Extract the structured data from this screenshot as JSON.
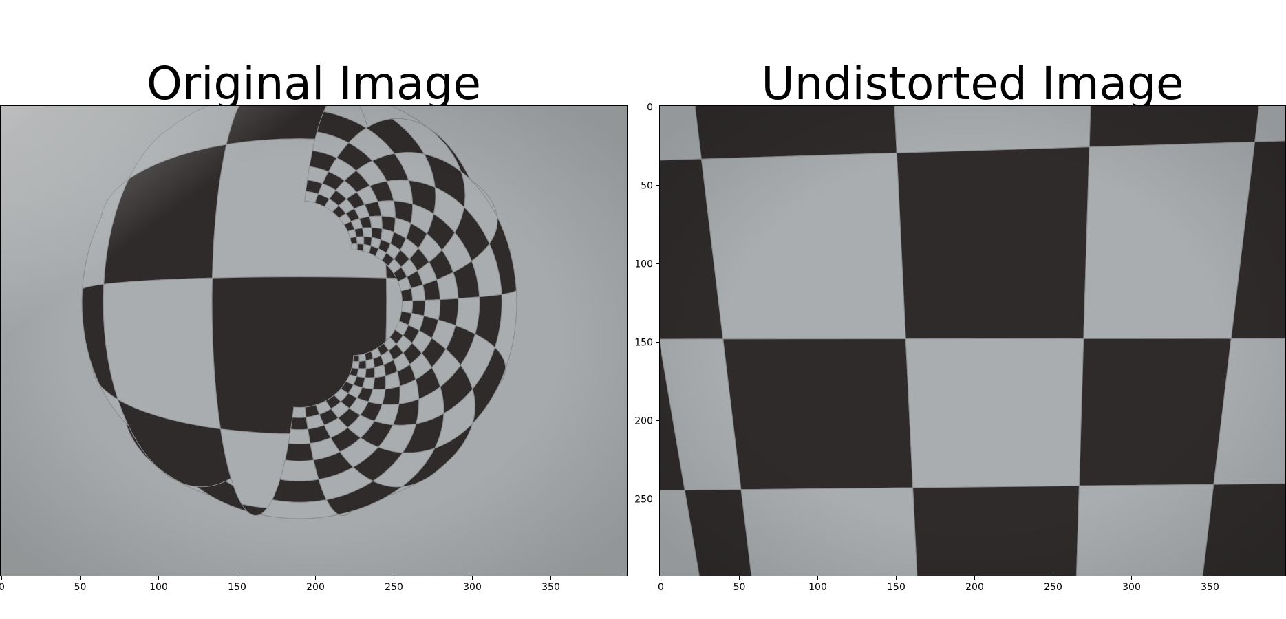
{
  "panels": [
    {
      "title": "Original Image",
      "x_ticks": [
        "0",
        "50",
        "100",
        "150",
        "200",
        "250",
        "300",
        "350"
      ],
      "y_ticks": []
    },
    {
      "title": "Undistorted Image",
      "x_ticks": [
        "0",
        "50",
        "100",
        "150",
        "200",
        "250",
        "300",
        "350"
      ],
      "y_ticks": [
        "0",
        "50",
        "100",
        "150",
        "200",
        "250"
      ]
    }
  ],
  "colors": {
    "dark_square": "#2f2b2b",
    "light_square": "#a9adaf",
    "background": "#ffffff"
  }
}
